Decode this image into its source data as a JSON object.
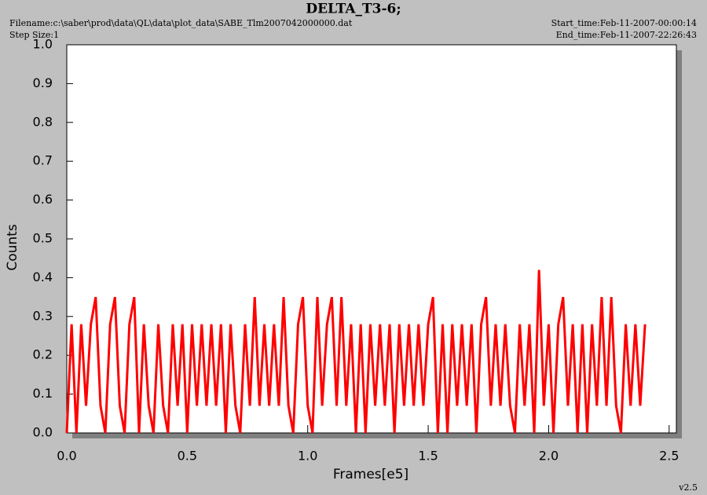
{
  "chart_data": {
    "type": "line",
    "title": "DELTA_T3-6;",
    "filename": "Filename:c:\\saber\\prod\\data\\QL\\data\\plot_data\\SABE_Tlm2007042000000.dat",
    "step_size": "Step Size:1",
    "start_time": "Start_time:Feb-11-2007-00:00:14",
    "end_time": "End_time:Feb-11-2007-22:26:43",
    "version": "v2.5",
    "xlabel": "Frames[e5]",
    "ylabel": "Counts",
    "xlim": [
      0,
      2.53
    ],
    "ylim": [
      0,
      1.0
    ],
    "xticks": [
      {
        "value": 0,
        "label": "0.0"
      },
      0.5,
      {
        "value": 1,
        "label": "1.0"
      },
      1.5,
      {
        "value": 2,
        "label": "2.0"
      },
      2.5
    ],
    "yticks": [
      {
        "value": 0,
        "label": "0.0"
      },
      0.1,
      0.2,
      0.3,
      0.4,
      0.5,
      0.6,
      0.7,
      0.8,
      0.9,
      {
        "value": 1,
        "label": "1.0"
      }
    ],
    "series": [
      {
        "color": "#ff0000",
        "x": [
          0.0,
          0.02,
          0.04,
          0.06,
          0.08,
          0.1,
          0.12,
          0.14,
          0.16,
          0.18,
          0.2,
          0.22,
          0.24,
          0.26,
          0.28,
          0.3,
          0.32,
          0.34,
          0.36,
          0.38,
          0.4,
          0.42,
          0.44,
          0.46,
          0.48,
          0.5,
          0.52,
          0.54,
          0.56,
          0.58,
          0.6,
          0.62,
          0.64,
          0.66,
          0.68,
          0.7,
          0.72,
          0.74,
          0.76,
          0.78,
          0.8,
          0.82,
          0.84,
          0.86,
          0.88,
          0.9,
          0.92,
          0.94,
          0.96,
          0.98,
          1.0,
          1.02,
          1.04,
          1.06,
          1.08,
          1.1,
          1.12,
          1.14,
          1.16,
          1.18,
          1.2,
          1.22,
          1.24,
          1.26,
          1.28,
          1.3,
          1.32,
          1.34,
          1.36,
          1.38,
          1.4,
          1.42,
          1.44,
          1.46,
          1.48,
          1.5,
          1.52,
          1.54,
          1.56,
          1.58,
          1.6,
          1.62,
          1.64,
          1.66,
          1.68,
          1.7,
          1.72,
          1.74,
          1.76,
          1.78,
          1.8,
          1.82,
          1.84,
          1.86,
          1.88,
          1.9,
          1.92,
          1.94,
          1.96,
          1.98,
          2.0,
          2.02,
          2.04,
          2.06,
          2.08,
          2.1,
          2.12,
          2.14,
          2.16,
          2.18,
          2.2,
          2.22,
          2.24,
          2.26,
          2.28,
          2.3,
          2.32,
          2.34,
          2.36,
          2.38,
          2.4
        ],
        "values": [
          0.0,
          0.28,
          0.0,
          0.28,
          0.07,
          0.28,
          0.35,
          0.07,
          0.0,
          0.28,
          0.35,
          0.07,
          0.0,
          0.28,
          0.35,
          0.0,
          0.28,
          0.07,
          0.0,
          0.28,
          0.07,
          0.0,
          0.28,
          0.07,
          0.28,
          0.0,
          0.28,
          0.07,
          0.28,
          0.07,
          0.28,
          0.07,
          0.28,
          0.0,
          0.28,
          0.07,
          0.0,
          0.28,
          0.07,
          0.35,
          0.07,
          0.28,
          0.07,
          0.28,
          0.07,
          0.35,
          0.07,
          0.0,
          0.28,
          0.35,
          0.07,
          0.0,
          0.35,
          0.07,
          0.28,
          0.35,
          0.07,
          0.35,
          0.07,
          0.28,
          0.0,
          0.28,
          0.0,
          0.28,
          0.07,
          0.28,
          0.07,
          0.28,
          0.0,
          0.28,
          0.07,
          0.28,
          0.07,
          0.28,
          0.07,
          0.28,
          0.35,
          0.0,
          0.28,
          0.0,
          0.28,
          0.07,
          0.28,
          0.07,
          0.28,
          0.0,
          0.28,
          0.35,
          0.07,
          0.28,
          0.07,
          0.28,
          0.07,
          0.0,
          0.28,
          0.07,
          0.28,
          0.0,
          0.42,
          0.07,
          0.28,
          0.0,
          0.28,
          0.35,
          0.07,
          0.28,
          0.0,
          0.28,
          0.0,
          0.28,
          0.07,
          0.35,
          0.07,
          0.35,
          0.07,
          0.0,
          0.28,
          0.07,
          0.28,
          0.07,
          0.28
        ]
      }
    ]
  }
}
